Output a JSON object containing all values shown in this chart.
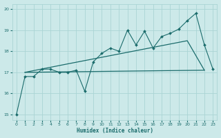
{
  "xlabel": "Humidex (Indice chaleur)",
  "xlim": [
    -0.5,
    23.5
  ],
  "ylim": [
    14.75,
    20.25
  ],
  "yticks": [
    15,
    16,
    17,
    18,
    19,
    20
  ],
  "xticks": [
    0,
    1,
    2,
    3,
    4,
    5,
    6,
    7,
    8,
    9,
    10,
    11,
    12,
    13,
    14,
    15,
    16,
    17,
    18,
    19,
    20,
    21,
    22,
    23
  ],
  "bg_color": "#cce9e9",
  "grid_color": "#aad4d4",
  "line_color": "#1a6b6b",
  "line1_x": [
    0,
    1,
    2,
    3,
    4,
    5,
    6,
    7,
    8,
    9,
    10,
    11,
    12,
    13,
    14,
    15,
    16,
    17,
    18,
    19,
    20,
    21,
    22,
    23
  ],
  "line1_y": [
    15.0,
    16.8,
    16.8,
    17.15,
    17.15,
    17.0,
    17.0,
    17.1,
    16.1,
    17.5,
    17.9,
    18.15,
    18.0,
    19.0,
    18.3,
    18.95,
    18.15,
    18.7,
    18.85,
    19.05,
    19.45,
    19.8,
    18.3,
    17.15
  ],
  "line2_x": [
    1,
    22
  ],
  "line2_y": [
    17.0,
    17.1
  ],
  "line3_x": [
    1,
    6,
    20,
    22
  ],
  "line3_y": [
    17.0,
    17.4,
    18.5,
    17.1
  ]
}
